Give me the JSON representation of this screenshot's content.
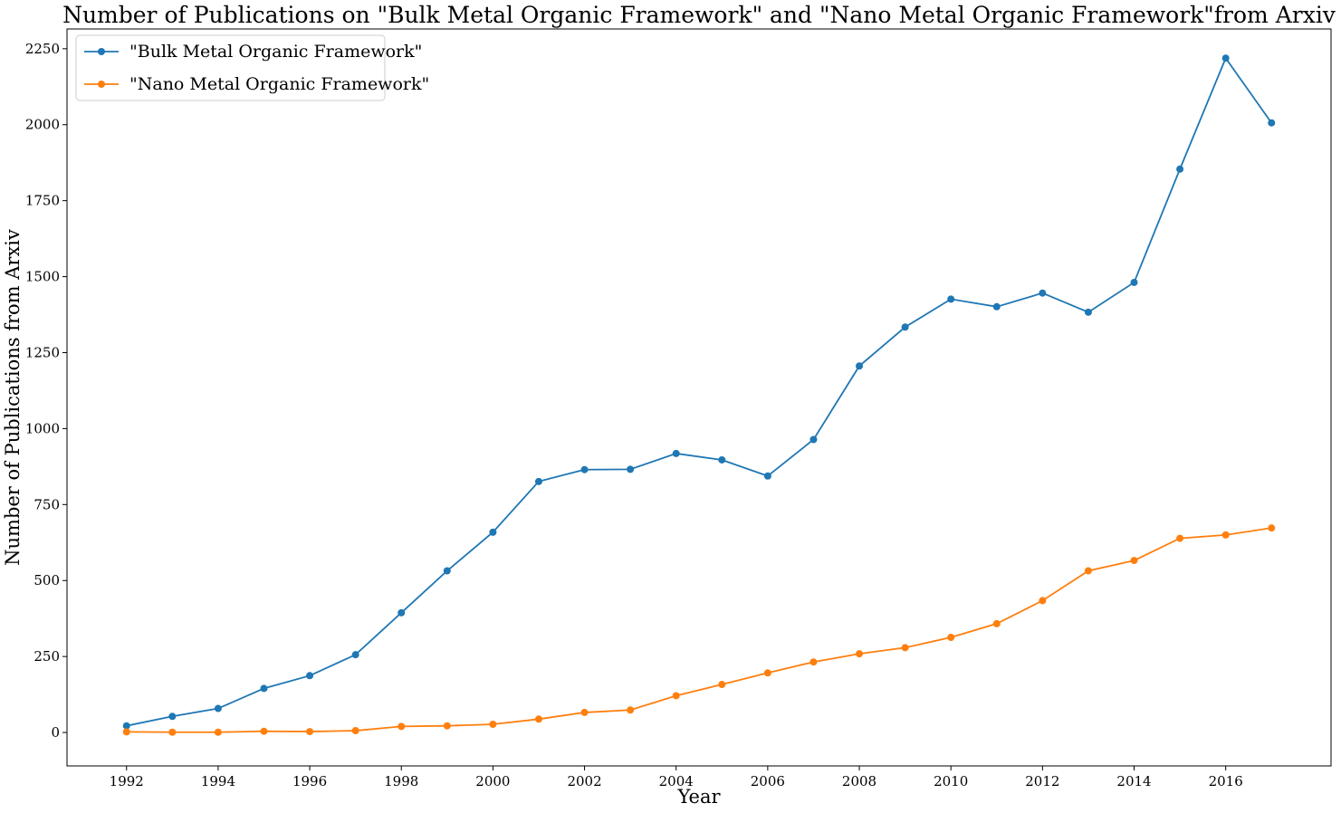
{
  "chart_data": {
    "type": "line",
    "title": "Number of Publications on \"Bulk Metal Organic Framework\" and \"Nano Metal Organic Framework\"from Arxiv",
    "xlabel": "Year",
    "ylabel": "Number of Publications from Arxiv",
    "x": [
      1992,
      1993,
      1994,
      1995,
      1996,
      1997,
      1998,
      1999,
      2000,
      2001,
      2002,
      2003,
      2004,
      2005,
      2006,
      2007,
      2008,
      2009,
      2010,
      2011,
      2012,
      2013,
      2014,
      2015,
      2016,
      2017
    ],
    "xticks": [
      1992,
      1994,
      1996,
      1998,
      2000,
      2002,
      2004,
      2006,
      2008,
      2010,
      2012,
      2014,
      2016
    ],
    "yticks": [
      0,
      250,
      500,
      750,
      1000,
      1250,
      1500,
      1750,
      2000,
      2250
    ],
    "xlim": [
      1990.7,
      2018.3
    ],
    "ylim": [
      -110,
      2315
    ],
    "legend_position": "upper-left",
    "grid": false,
    "series": [
      {
        "name": "\"Bulk Metal Organic Framework\"",
        "color": "#1f77b4",
        "marker": "circle",
        "values": [
          22,
          53,
          79,
          145,
          187,
          256,
          394,
          532,
          659,
          826,
          865,
          866,
          918,
          897,
          844,
          964,
          1206,
          1334,
          1426,
          1401,
          1446,
          1383,
          1481,
          1854,
          2219,
          2006
        ]
      },
      {
        "name": "\"Nano Metal Organic Framework\"",
        "color": "#ff7f0e",
        "marker": "circle",
        "values": [
          2,
          1,
          1,
          4,
          3,
          6,
          20,
          22,
          27,
          44,
          66,
          74,
          121,
          158,
          196,
          232,
          259,
          279,
          313,
          358,
          434,
          532,
          566,
          639,
          650,
          673
        ]
      }
    ]
  }
}
